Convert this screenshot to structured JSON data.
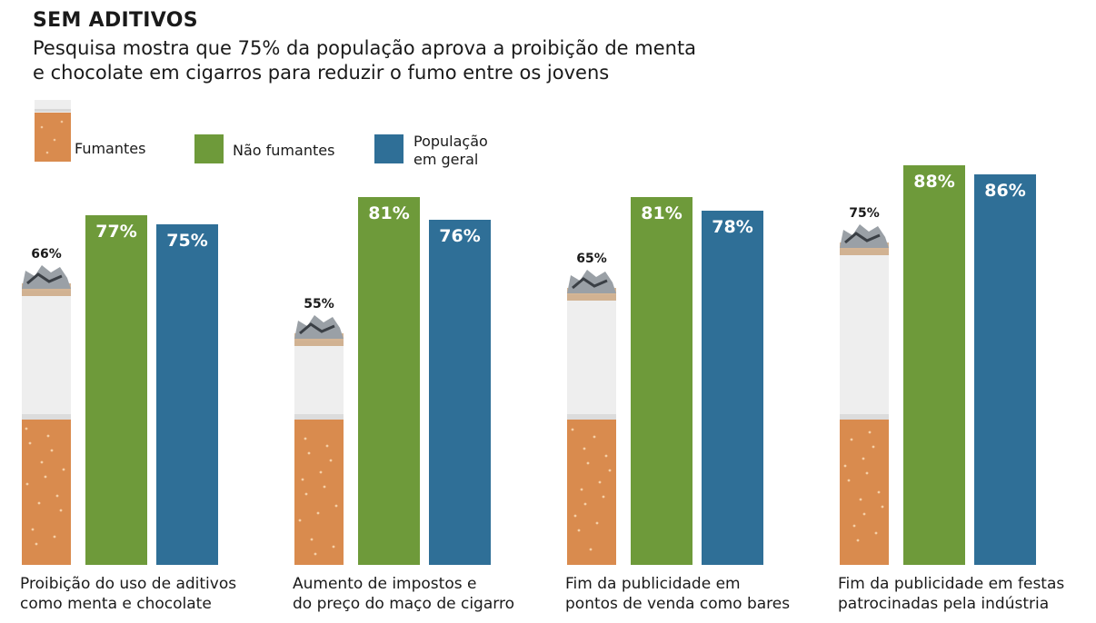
{
  "header": {
    "title": "SEM ADITIVOS",
    "subtitle_lines": [
      "Pesquisa mostra que 75% da população aprova a proibição de menta",
      "e chocolate em cigarros para reduzir o fumo entre os jovens"
    ]
  },
  "legend": {
    "smokers": "Fumantes",
    "non_smokers": "Não fumantes",
    "general_line1": "População",
    "general_line2": "em geral"
  },
  "colors": {
    "non_smokers": "#6e9a3a",
    "general": "#2f6f97",
    "filter": "#d98b4e",
    "paper": "#eeeeee",
    "ash": "#9aa0a6"
  },
  "chart_data": {
    "type": "bar",
    "title": "SEM ADITIVOS",
    "categories": [
      "Proibição do uso de aditivos como menta e chocolate",
      "Aumento de impostos e do preço do maço de cigarro",
      "Fim da publicidade em pontos de venda como bares",
      "Fim da publicidade em festas patrocinadas pela indústria"
    ],
    "category_lines": [
      [
        "Proibição do uso de aditivos",
        "como menta e chocolate"
      ],
      [
        "Aumento de impostos e",
        "do preço do maço de cigarro"
      ],
      [
        "Fim da publicidade em",
        "pontos de venda como bares"
      ],
      [
        "Fim da publicidade em festas",
        "patrocinadas pela indústria"
      ]
    ],
    "series": [
      {
        "name": "Fumantes",
        "values": [
          66,
          55,
          65,
          75
        ],
        "labels": [
          "66%",
          "55%",
          "65%",
          "75%"
        ]
      },
      {
        "name": "Não fumantes",
        "values": [
          77,
          81,
          81,
          88
        ],
        "labels": [
          "77%",
          "81%",
          "81%",
          "88%"
        ]
      },
      {
        "name": "População em geral",
        "values": [
          75,
          76,
          78,
          86
        ],
        "labels": [
          "75%",
          "76%",
          "78%",
          "86%"
        ]
      }
    ],
    "unit": "%",
    "ylim": [
      0,
      100
    ],
    "grid": false,
    "legend_position": "top-left"
  }
}
